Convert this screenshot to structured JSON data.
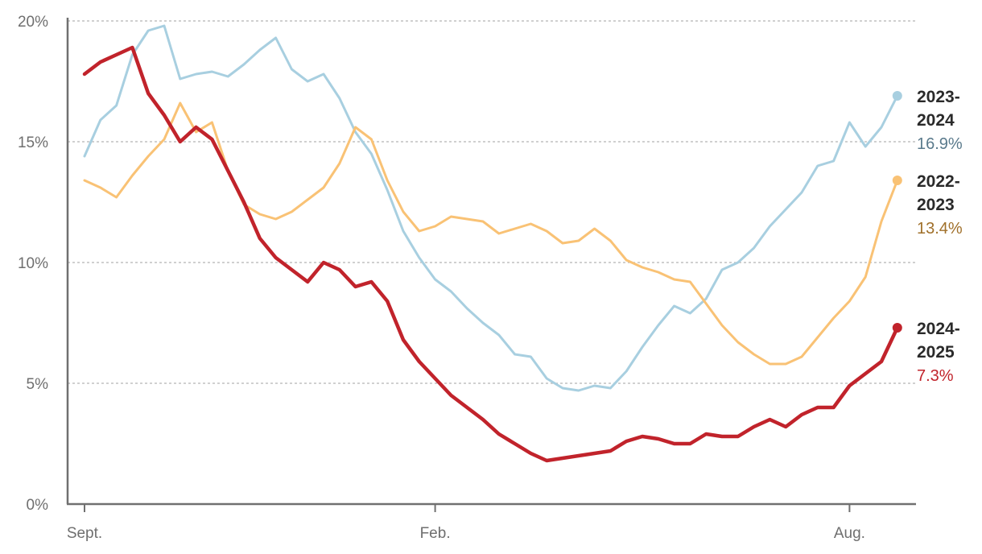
{
  "chart_data": {
    "type": "line",
    "title": "",
    "xlabel": "",
    "ylabel": "",
    "ylim": [
      0,
      20
    ],
    "grid": true,
    "y_ticks": [
      {
        "value": 0,
        "label": "0%"
      },
      {
        "value": 5,
        "label": "5%"
      },
      {
        "value": 10,
        "label": "10%"
      },
      {
        "value": 15,
        "label": "15%"
      },
      {
        "value": 20,
        "label": "20%"
      }
    ],
    "x_ticks": [
      {
        "week": 0,
        "label": "Sept."
      },
      {
        "week": 22,
        "label": "Feb."
      },
      {
        "week": 48,
        "label": "Aug."
      }
    ],
    "series": [
      {
        "name": "2023-\n2024",
        "name_lines": [
          "2023-",
          "2024"
        ],
        "end_label": "16.9%",
        "color": "#a8cfe0",
        "value_color": "#5a7a8c",
        "width": 3,
        "values": [
          14.4,
          15.9,
          16.5,
          18.6,
          19.6,
          19.8,
          17.6,
          17.8,
          17.9,
          17.7,
          18.2,
          18.8,
          19.3,
          18.0,
          17.5,
          17.8,
          16.8,
          15.4,
          14.5,
          13.0,
          11.3,
          10.2,
          9.3,
          8.8,
          8.1,
          7.5,
          7.0,
          6.2,
          6.1,
          5.2,
          4.8,
          4.7,
          4.9,
          4.8,
          5.5,
          6.5,
          7.4,
          8.2,
          7.9,
          8.5,
          9.7,
          10.0,
          10.6,
          11.5,
          12.2,
          12.9,
          14.0,
          14.2,
          15.8,
          14.8,
          15.6,
          16.9
        ]
      },
      {
        "name": "2022-\n2023",
        "name_lines": [
          "2022-",
          "2023"
        ],
        "end_label": "13.4%",
        "color": "#f9c275",
        "value_color": "#a0702a",
        "width": 3,
        "values": [
          13.4,
          13.1,
          12.7,
          13.6,
          14.4,
          15.1,
          16.6,
          15.4,
          15.8,
          13.8,
          12.4,
          12.0,
          11.8,
          12.1,
          12.6,
          13.1,
          14.1,
          15.6,
          15.1,
          13.4,
          12.1,
          11.3,
          11.5,
          11.9,
          11.8,
          11.7,
          11.2,
          11.4,
          11.6,
          11.3,
          10.8,
          10.9,
          11.4,
          10.9,
          10.1,
          9.8,
          9.6,
          9.3,
          9.2,
          8.3,
          7.4,
          6.7,
          6.2,
          5.8,
          5.8,
          6.1,
          6.9,
          7.7,
          8.4,
          9.4,
          11.7,
          13.4
        ]
      },
      {
        "name": "2024-\n2025",
        "name_lines": [
          "2024-",
          "2025"
        ],
        "end_label": "7.3%",
        "color": "#c1232b",
        "value_color": "#c1232b",
        "width": 4.5,
        "values": [
          17.8,
          18.3,
          18.6,
          18.9,
          17.0,
          16.1,
          15.0,
          15.6,
          15.1,
          13.8,
          12.5,
          11.0,
          10.2,
          9.7,
          9.2,
          10.0,
          9.7,
          9.0,
          9.2,
          8.4,
          6.8,
          5.9,
          5.2,
          4.5,
          4.0,
          3.5,
          2.9,
          2.5,
          2.1,
          1.8,
          1.9,
          2.0,
          2.1,
          2.2,
          2.6,
          2.8,
          2.7,
          2.5,
          2.5,
          2.9,
          2.8,
          2.8,
          3.2,
          3.5,
          3.2,
          3.7,
          4.0,
          4.0,
          4.9,
          5.4,
          5.9,
          7.3
        ]
      }
    ]
  }
}
